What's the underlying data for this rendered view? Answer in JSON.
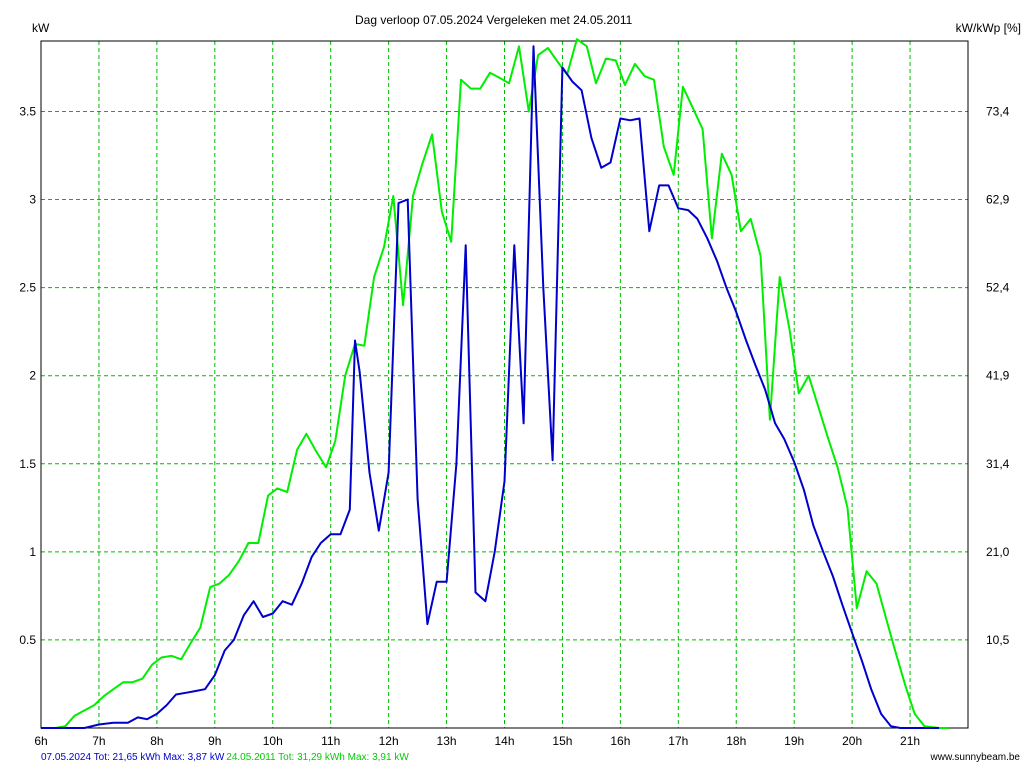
{
  "chart_data": {
    "type": "line",
    "title": "Dag  verloop 07.05.2024   Vergeleken met 24.05.2011",
    "ylabel_left": "kW",
    "ylabel_right": "kW/kWp [%]",
    "x_ticks": [
      "6h",
      "7h",
      "8h",
      "9h",
      "10h",
      "11h",
      "12h",
      "13h",
      "14h",
      "15h",
      "16h",
      "17h",
      "18h",
      "19h",
      "20h",
      "21h"
    ],
    "xlim": [
      6.0,
      22.0
    ],
    "ylim": [
      0,
      3.9
    ],
    "y_ticks_left": [
      "0.5",
      "1",
      "1.5",
      "2",
      "2.5",
      "3",
      "3.5"
    ],
    "y_ticks_left_values": [
      0.5,
      1,
      1.5,
      2,
      2.5,
      3,
      3.5
    ],
    "y_ticks_right": [
      "10,5",
      "21,0",
      "31,4",
      "41,9",
      "52,4",
      "62,9",
      "73,4"
    ],
    "grid": true,
    "series": [
      {
        "name": "07.05.2024",
        "color": "#0000cc",
        "points": [
          [
            6.0,
            0
          ],
          [
            6.25,
            0
          ],
          [
            6.5,
            0
          ],
          [
            6.75,
            0
          ],
          [
            7.0,
            0.02
          ],
          [
            7.25,
            0.03
          ],
          [
            7.5,
            0.03
          ],
          [
            7.67,
            0.06
          ],
          [
            7.83,
            0.05
          ],
          [
            8.0,
            0.08
          ],
          [
            8.17,
            0.13
          ],
          [
            8.33,
            0.19
          ],
          [
            8.5,
            0.2
          ],
          [
            8.67,
            0.21
          ],
          [
            8.83,
            0.22
          ],
          [
            9.0,
            0.3
          ],
          [
            9.17,
            0.44
          ],
          [
            9.33,
            0.5
          ],
          [
            9.5,
            0.64
          ],
          [
            9.67,
            0.72
          ],
          [
            9.83,
            0.63
          ],
          [
            10.0,
            0.65
          ],
          [
            10.17,
            0.72
          ],
          [
            10.33,
            0.7
          ],
          [
            10.5,
            0.82
          ],
          [
            10.67,
            0.97
          ],
          [
            10.83,
            1.05
          ],
          [
            11.0,
            1.1
          ],
          [
            11.17,
            1.1
          ],
          [
            11.33,
            1.24
          ],
          [
            11.42,
            2.2
          ],
          [
            11.5,
            2.02
          ],
          [
            11.67,
            1.45
          ],
          [
            11.83,
            1.12
          ],
          [
            12.0,
            1.45
          ],
          [
            12.17,
            2.98
          ],
          [
            12.33,
            3.0
          ],
          [
            12.5,
            1.3
          ],
          [
            12.67,
            0.59
          ],
          [
            12.83,
            0.83
          ],
          [
            13.0,
            0.83
          ],
          [
            13.17,
            1.5
          ],
          [
            13.33,
            2.74
          ],
          [
            13.5,
            0.77
          ],
          [
            13.67,
            0.72
          ],
          [
            13.83,
            1.0
          ],
          [
            14.0,
            1.4
          ],
          [
            14.17,
            2.74
          ],
          [
            14.33,
            1.73
          ],
          [
            14.5,
            3.87
          ],
          [
            14.67,
            2.5
          ],
          [
            14.83,
            1.52
          ],
          [
            15.0,
            3.75
          ],
          [
            15.17,
            3.67
          ],
          [
            15.33,
            3.62
          ],
          [
            15.5,
            3.35
          ],
          [
            15.67,
            3.18
          ],
          [
            15.83,
            3.21
          ],
          [
            16.0,
            3.46
          ],
          [
            16.17,
            3.45
          ],
          [
            16.33,
            3.46
          ],
          [
            16.5,
            2.82
          ],
          [
            16.67,
            3.08
          ],
          [
            16.83,
            3.08
          ],
          [
            17.0,
            2.95
          ],
          [
            17.17,
            2.94
          ],
          [
            17.33,
            2.89
          ],
          [
            17.5,
            2.78
          ],
          [
            17.67,
            2.65
          ],
          [
            17.83,
            2.5
          ],
          [
            18.0,
            2.36
          ],
          [
            18.17,
            2.2
          ],
          [
            18.33,
            2.06
          ],
          [
            18.5,
            1.92
          ],
          [
            18.67,
            1.73
          ],
          [
            18.83,
            1.64
          ],
          [
            19.0,
            1.51
          ],
          [
            19.17,
            1.35
          ],
          [
            19.33,
            1.15
          ],
          [
            19.5,
            1.0
          ],
          [
            19.67,
            0.86
          ],
          [
            19.83,
            0.7
          ],
          [
            20.0,
            0.54
          ],
          [
            20.17,
            0.38
          ],
          [
            20.33,
            0.22
          ],
          [
            20.5,
            0.08
          ],
          [
            20.67,
            0.01
          ],
          [
            20.83,
            0
          ],
          [
            21.0,
            0
          ],
          [
            21.5,
            0
          ]
        ]
      },
      {
        "name": "24.05.2011",
        "color": "#00ee00",
        "points": [
          [
            6.0,
            0
          ],
          [
            6.25,
            0
          ],
          [
            6.42,
            0.01
          ],
          [
            6.58,
            0.07
          ],
          [
            6.75,
            0.1
          ],
          [
            6.92,
            0.13
          ],
          [
            7.08,
            0.18
          ],
          [
            7.25,
            0.22
          ],
          [
            7.42,
            0.26
          ],
          [
            7.58,
            0.26
          ],
          [
            7.75,
            0.28
          ],
          [
            7.92,
            0.36
          ],
          [
            8.08,
            0.4
          ],
          [
            8.25,
            0.41
          ],
          [
            8.42,
            0.39
          ],
          [
            8.58,
            0.48
          ],
          [
            8.75,
            0.57
          ],
          [
            8.92,
            0.8
          ],
          [
            9.08,
            0.82
          ],
          [
            9.25,
            0.87
          ],
          [
            9.42,
            0.95
          ],
          [
            9.58,
            1.05
          ],
          [
            9.75,
            1.05
          ],
          [
            9.92,
            1.32
          ],
          [
            10.08,
            1.36
          ],
          [
            10.25,
            1.34
          ],
          [
            10.42,
            1.58
          ],
          [
            10.58,
            1.67
          ],
          [
            10.75,
            1.57
          ],
          [
            10.92,
            1.48
          ],
          [
            11.08,
            1.63
          ],
          [
            11.25,
            2.0
          ],
          [
            11.42,
            2.18
          ],
          [
            11.58,
            2.17
          ],
          [
            11.75,
            2.56
          ],
          [
            11.92,
            2.73
          ],
          [
            12.08,
            3.02
          ],
          [
            12.25,
            2.4
          ],
          [
            12.42,
            3.02
          ],
          [
            12.58,
            3.2
          ],
          [
            12.75,
            3.37
          ],
          [
            12.92,
            2.93
          ],
          [
            13.08,
            2.76
          ],
          [
            13.25,
            3.68
          ],
          [
            13.42,
            3.63
          ],
          [
            13.58,
            3.63
          ],
          [
            13.75,
            3.72
          ],
          [
            13.92,
            3.69
          ],
          [
            14.08,
            3.66
          ],
          [
            14.25,
            3.87
          ],
          [
            14.42,
            3.5
          ],
          [
            14.58,
            3.82
          ],
          [
            14.75,
            3.86
          ],
          [
            14.92,
            3.78
          ],
          [
            15.08,
            3.71
          ],
          [
            15.25,
            3.91
          ],
          [
            15.42,
            3.87
          ],
          [
            15.58,
            3.66
          ],
          [
            15.75,
            3.8
          ],
          [
            15.92,
            3.79
          ],
          [
            16.08,
            3.65
          ],
          [
            16.25,
            3.77
          ],
          [
            16.42,
            3.7
          ],
          [
            16.58,
            3.68
          ],
          [
            16.75,
            3.3
          ],
          [
            16.92,
            3.14
          ],
          [
            17.08,
            3.64
          ],
          [
            17.25,
            3.52
          ],
          [
            17.42,
            3.4
          ],
          [
            17.58,
            2.78
          ],
          [
            17.75,
            3.26
          ],
          [
            17.92,
            3.14
          ],
          [
            18.08,
            2.82
          ],
          [
            18.25,
            2.89
          ],
          [
            18.42,
            2.68
          ],
          [
            18.58,
            1.75
          ],
          [
            18.75,
            2.56
          ],
          [
            18.92,
            2.26
          ],
          [
            19.08,
            1.9
          ],
          [
            19.25,
            2.0
          ],
          [
            19.42,
            1.82
          ],
          [
            19.58,
            1.65
          ],
          [
            19.75,
            1.48
          ],
          [
            19.92,
            1.25
          ],
          [
            20.08,
            0.68
          ],
          [
            20.25,
            0.89
          ],
          [
            20.42,
            0.82
          ],
          [
            20.58,
            0.63
          ],
          [
            20.75,
            0.43
          ],
          [
            20.92,
            0.24
          ],
          [
            21.08,
            0.08
          ],
          [
            21.25,
            0.01
          ],
          [
            21.5,
            0
          ],
          [
            21.67,
            0
          ]
        ]
      }
    ]
  },
  "footer": {
    "left_a": "07.05.2024 Tot: 21,65 kWh Max: 3,87 kW",
    "left_b": "24.05.2011 Tot: 31,29 kWh Max: 3,91 kW",
    "right": "www.sunnybeam.be",
    "color_a": "#0000cc",
    "color_b": "#00cc00"
  }
}
